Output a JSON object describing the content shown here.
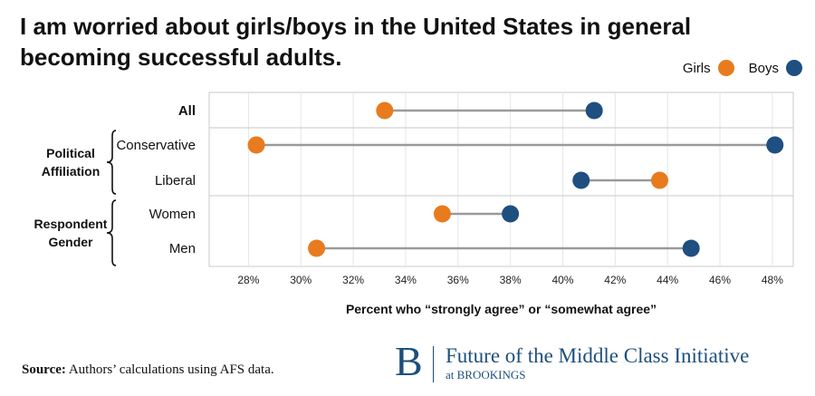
{
  "title": "I am worried about girls/boys in the United States in general becoming successful adults.",
  "legend": {
    "girls": "Girls",
    "boys": "Boys"
  },
  "colors": {
    "girls": "#e87b1e",
    "boys": "#1f4e81",
    "connector": "#9a9a9a",
    "grid": "#e6e6e6",
    "frame": "#c8c8c8"
  },
  "chart_data": {
    "type": "dumbbell",
    "xlabel": "Percent who “strongly agree” or “somewhat agree”",
    "xlim": [
      26.5,
      48.8
    ],
    "xticks": [
      28,
      30,
      32,
      34,
      36,
      38,
      40,
      42,
      44,
      46,
      48
    ],
    "xtick_labels": [
      "28%",
      "30%",
      "32%",
      "34%",
      "36%",
      "38%",
      "40%",
      "42%",
      "44%",
      "46%",
      "48%"
    ],
    "rows": [
      {
        "label": "All",
        "girls": 33.2,
        "boys": 41.2
      },
      {
        "label": "Conservative",
        "girls": 28.3,
        "boys": 48.1
      },
      {
        "label": "Liberal",
        "girls": 43.7,
        "boys": 40.7
      },
      {
        "label": "Women",
        "girls": 35.4,
        "boys": 38.0
      },
      {
        "label": "Men",
        "girls": 30.6,
        "boys": 44.9
      }
    ],
    "groups": [
      {
        "label_lines": [
          "Political",
          "Affiliation"
        ],
        "rows": [
          "Conservative",
          "Liberal"
        ]
      },
      {
        "label_lines": [
          "Respondent",
          "Gender"
        ],
        "rows": [
          "Women",
          "Men"
        ]
      }
    ]
  },
  "source": {
    "prefix": "Source:",
    "text": "Authors’ calculations using AFS data."
  },
  "logo": {
    "letter": "B",
    "name": "Future of the Middle Class Initiative",
    "sub": "at BROOKINGS"
  }
}
